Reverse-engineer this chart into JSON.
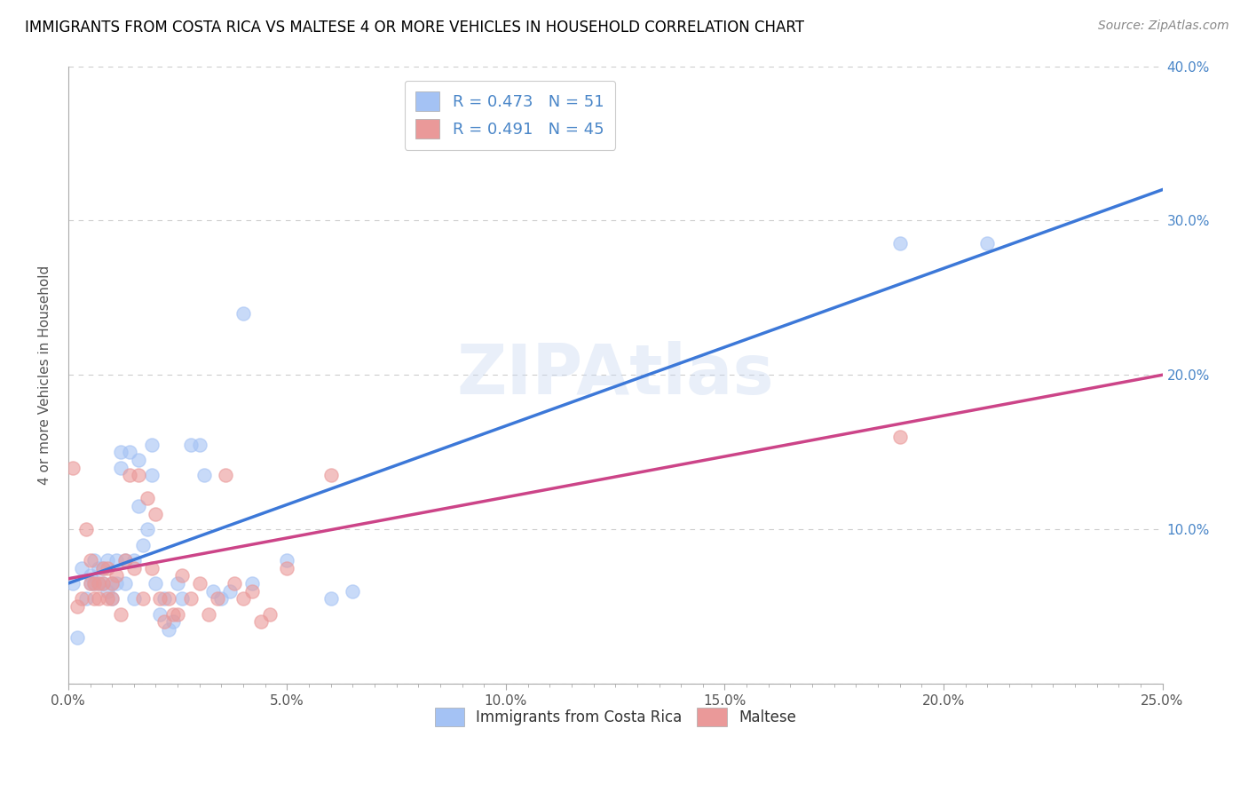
{
  "title": "IMMIGRANTS FROM COSTA RICA VS MALTESE 4 OR MORE VEHICLES IN HOUSEHOLD CORRELATION CHART",
  "source": "Source: ZipAtlas.com",
  "ylabel": "4 or more Vehicles in Household",
  "xlim": [
    0.0,
    0.25
  ],
  "ylim": [
    0.0,
    0.4
  ],
  "xtick_labels": [
    "0.0%",
    "",
    "",
    "",
    "",
    "",
    "",
    "",
    "",
    "",
    "5.0%",
    "",
    "",
    "",
    "",
    "",
    "",
    "",
    "",
    "",
    "10.0%",
    "",
    "",
    "",
    "",
    "",
    "",
    "",
    "",
    "",
    "15.0%",
    "",
    "",
    "",
    "",
    "",
    "",
    "",
    "",
    "",
    "20.0%",
    "",
    "",
    "",
    "",
    "",
    "",
    "",
    "",
    "",
    "25.0%"
  ],
  "xtick_vals": [
    0.0,
    0.005,
    0.01,
    0.015,
    0.02,
    0.025,
    0.03,
    0.035,
    0.04,
    0.045,
    0.05,
    0.055,
    0.06,
    0.065,
    0.07,
    0.075,
    0.08,
    0.085,
    0.09,
    0.095,
    0.1,
    0.105,
    0.11,
    0.115,
    0.12,
    0.125,
    0.13,
    0.135,
    0.14,
    0.145,
    0.15,
    0.155,
    0.16,
    0.165,
    0.17,
    0.175,
    0.18,
    0.185,
    0.19,
    0.195,
    0.2,
    0.205,
    0.21,
    0.215,
    0.22,
    0.225,
    0.23,
    0.235,
    0.24,
    0.245,
    0.25
  ],
  "xtick_major_vals": [
    0.0,
    0.05,
    0.1,
    0.15,
    0.2,
    0.25
  ],
  "xtick_major_labels": [
    "0.0%",
    "5.0%",
    "10.0%",
    "15.0%",
    "20.0%",
    "25.0%"
  ],
  "ytick_vals": [
    0.0,
    0.1,
    0.2,
    0.3,
    0.4
  ],
  "ytick_labels_right": [
    "",
    "10.0%",
    "20.0%",
    "30.0%",
    "40.0%"
  ],
  "watermark": "ZIPAtlas",
  "blue_color": "#a4c2f4",
  "pink_color": "#ea9999",
  "blue_line_color": "#3c78d8",
  "pink_line_color": "#cc4488",
  "legend_label_blue": "Immigrants from Costa Rica",
  "legend_label_pink": "Maltese",
  "R_blue": 0.473,
  "N_blue": 51,
  "R_pink": 0.491,
  "N_pink": 45,
  "blue_scatter_x": [
    0.001,
    0.002,
    0.003,
    0.004,
    0.005,
    0.005,
    0.006,
    0.006,
    0.007,
    0.007,
    0.008,
    0.008,
    0.009,
    0.009,
    0.01,
    0.01,
    0.011,
    0.011,
    0.012,
    0.012,
    0.013,
    0.013,
    0.014,
    0.015,
    0.015,
    0.016,
    0.016,
    0.017,
    0.018,
    0.019,
    0.019,
    0.02,
    0.021,
    0.022,
    0.023,
    0.024,
    0.025,
    0.026,
    0.028,
    0.03,
    0.031,
    0.033,
    0.035,
    0.037,
    0.04,
    0.042,
    0.05,
    0.06,
    0.065,
    0.19,
    0.21
  ],
  "blue_scatter_y": [
    0.065,
    0.03,
    0.075,
    0.055,
    0.065,
    0.07,
    0.065,
    0.08,
    0.065,
    0.075,
    0.065,
    0.075,
    0.06,
    0.08,
    0.065,
    0.055,
    0.065,
    0.08,
    0.14,
    0.15,
    0.08,
    0.065,
    0.15,
    0.08,
    0.055,
    0.115,
    0.145,
    0.09,
    0.1,
    0.135,
    0.155,
    0.065,
    0.045,
    0.055,
    0.035,
    0.04,
    0.065,
    0.055,
    0.155,
    0.155,
    0.135,
    0.06,
    0.055,
    0.06,
    0.24,
    0.065,
    0.08,
    0.055,
    0.06,
    0.285,
    0.285
  ],
  "pink_scatter_x": [
    0.001,
    0.002,
    0.003,
    0.004,
    0.005,
    0.005,
    0.006,
    0.006,
    0.007,
    0.007,
    0.008,
    0.008,
    0.009,
    0.009,
    0.01,
    0.01,
    0.011,
    0.012,
    0.013,
    0.014,
    0.015,
    0.016,
    0.017,
    0.018,
    0.019,
    0.02,
    0.021,
    0.022,
    0.023,
    0.024,
    0.025,
    0.026,
    0.028,
    0.03,
    0.032,
    0.034,
    0.036,
    0.038,
    0.04,
    0.042,
    0.044,
    0.046,
    0.05,
    0.06,
    0.19
  ],
  "pink_scatter_y": [
    0.14,
    0.05,
    0.055,
    0.1,
    0.065,
    0.08,
    0.065,
    0.055,
    0.055,
    0.065,
    0.075,
    0.065,
    0.055,
    0.075,
    0.065,
    0.055,
    0.07,
    0.045,
    0.08,
    0.135,
    0.075,
    0.135,
    0.055,
    0.12,
    0.075,
    0.11,
    0.055,
    0.04,
    0.055,
    0.045,
    0.045,
    0.07,
    0.055,
    0.065,
    0.045,
    0.055,
    0.135,
    0.065,
    0.055,
    0.06,
    0.04,
    0.045,
    0.075,
    0.135,
    0.16
  ],
  "blue_trend_x": [
    0.0,
    0.25
  ],
  "blue_trend_y": [
    0.065,
    0.32
  ],
  "pink_trend_x": [
    0.0,
    0.25
  ],
  "pink_trend_y": [
    0.068,
    0.2
  ],
  "background_color": "#ffffff",
  "grid_color": "#cccccc"
}
